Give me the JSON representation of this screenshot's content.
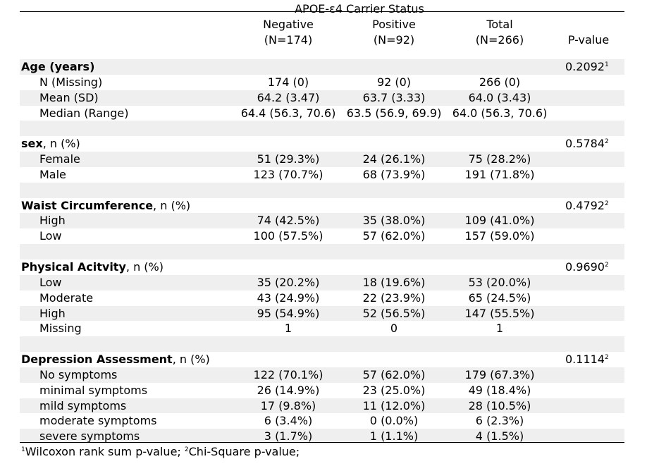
{
  "header": {
    "span_label": "APOE-ε4 Carrier Status",
    "columns": [
      {
        "name": "Negative",
        "n": "(N=174)"
      },
      {
        "name": "Positive",
        "n": "(N=92)"
      },
      {
        "name": "Total",
        "n": "(N=266)"
      }
    ],
    "pvalue_label": "P-value"
  },
  "sections": [
    {
      "title_bold": "Age (years)",
      "title_rest": "",
      "pvalue": "0.2092",
      "pvalue_sup": "1",
      "rows": [
        {
          "label": "N (Missing)",
          "values": [
            "174 (0)",
            "92 (0)",
            "266 (0)"
          ]
        },
        {
          "label": "Mean (SD)",
          "values": [
            "64.2 (3.47)",
            "63.7 (3.33)",
            "64.0 (3.43)"
          ]
        },
        {
          "label": "Median (Range)",
          "values": [
            "64.4 (56.3, 70.6)",
            "63.5 (56.9, 69.9)",
            "64.0 (56.3, 70.6)"
          ]
        }
      ]
    },
    {
      "title_bold": "sex",
      "title_rest": ", n (%)",
      "pvalue": "0.5784",
      "pvalue_sup": "2",
      "rows": [
        {
          "label": "Female",
          "values": [
            "51 (29.3%)",
            "24 (26.1%)",
            "75 (28.2%)"
          ]
        },
        {
          "label": "Male",
          "values": [
            "123 (70.7%)",
            "68 (73.9%)",
            "191 (71.8%)"
          ]
        }
      ]
    },
    {
      "title_bold": "Waist Circumference",
      "title_rest": ", n (%)",
      "pvalue": "0.4792",
      "pvalue_sup": "2",
      "rows": [
        {
          "label": "High",
          "values": [
            "74 (42.5%)",
            "35 (38.0%)",
            "109 (41.0%)"
          ]
        },
        {
          "label": "Low",
          "values": [
            "100 (57.5%)",
            "57 (62.0%)",
            "157 (59.0%)"
          ]
        }
      ]
    },
    {
      "title_bold": "Physical Acitvity",
      "title_rest": ", n (%)",
      "pvalue": "0.9690",
      "pvalue_sup": "2",
      "rows": [
        {
          "label": "Low",
          "values": [
            "35 (20.2%)",
            "18 (19.6%)",
            "53 (20.0%)"
          ]
        },
        {
          "label": "Moderate",
          "values": [
            "43 (24.9%)",
            "22 (23.9%)",
            "65 (24.5%)"
          ]
        },
        {
          "label": "High",
          "values": [
            "95 (54.9%)",
            "52 (56.5%)",
            "147 (55.5%)"
          ]
        },
        {
          "label": "Missing",
          "values": [
            "1",
            "0",
            "1"
          ]
        }
      ]
    },
    {
      "title_bold": "Depression Assessment",
      "title_rest": ", n (%)",
      "pvalue": "0.1114",
      "pvalue_sup": "2",
      "rows": [
        {
          "label": "No symptoms",
          "values": [
            "122 (70.1%)",
            "57 (62.0%)",
            "179 (67.3%)"
          ]
        },
        {
          "label": "minimal symptoms",
          "values": [
            "26 (14.9%)",
            "23 (25.0%)",
            "49 (18.4%)"
          ]
        },
        {
          "label": "mild symptoms",
          "values": [
            "17 (9.8%)",
            "11 (12.0%)",
            "28 (10.5%)"
          ]
        },
        {
          "label": "moderate symptoms",
          "values": [
            "6 (3.4%)",
            "0 (0.0%)",
            "6 (2.3%)"
          ]
        },
        {
          "label": "severe symptoms",
          "values": [
            "3 (1.7%)",
            "1 (1.1%)",
            "4 (1.5%)"
          ]
        }
      ]
    }
  ],
  "footnote": {
    "sup1": "1",
    "text1": "Wilcoxon rank sum p-value; ",
    "sup2": "2",
    "text2": "Chi-Square p-value;"
  }
}
